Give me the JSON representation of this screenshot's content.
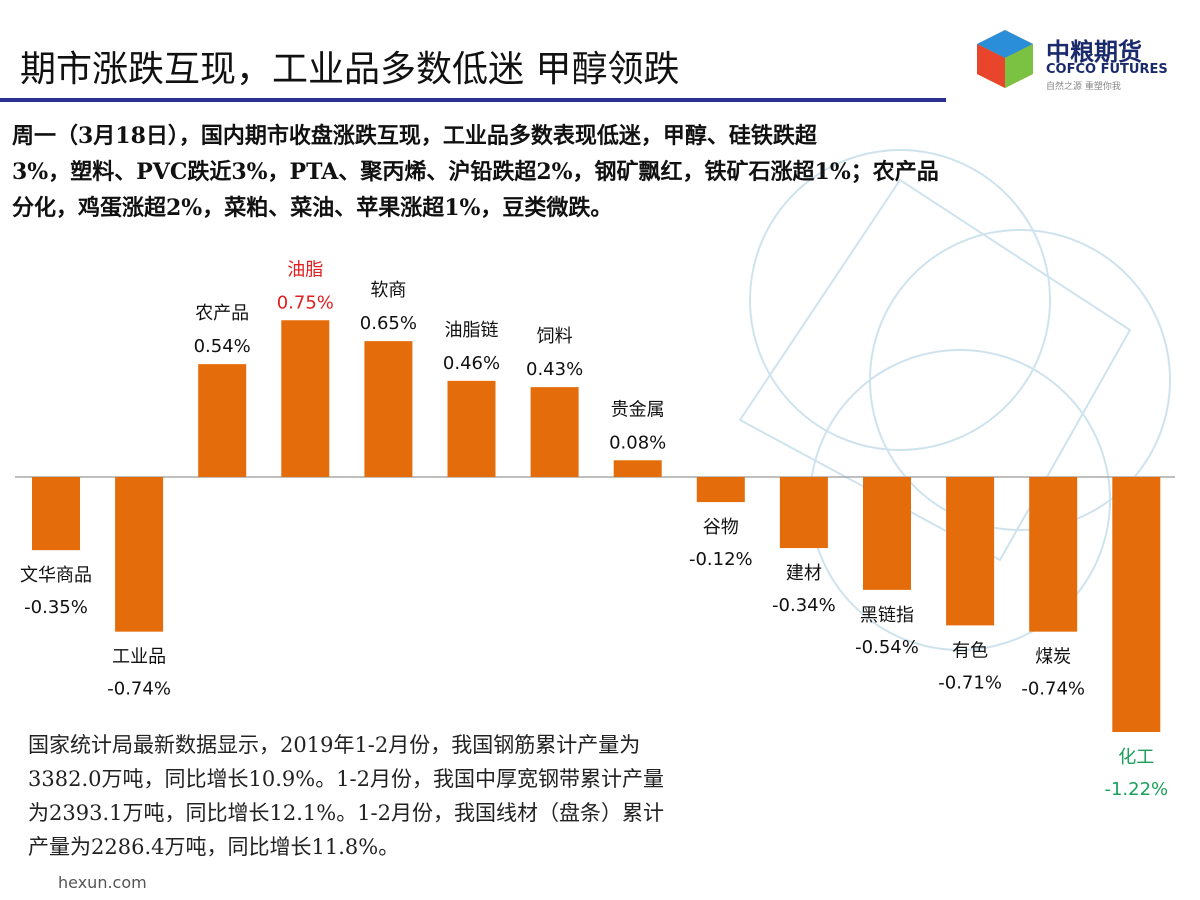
{
  "header": {
    "title": "期市涨跌互现，工业品多数低迷 甲醇领跌",
    "logo_cn": "中粮期货",
    "logo_en": "COFCO FUTURES",
    "logo_slogan": "自然之源 重塑你我"
  },
  "intro": [
    "周一（3月18日），国内期市收盘涨跌互现，工业品多数表现低迷，甲醇、硅铁跌超",
    "3%，塑料、PVC跌近3%，PTA、聚丙烯、沪铅跌超2%，钢矿飘红，铁矿石涨超1%；农产品",
    "分化，鸡蛋涨超2%，菜粕、菜油、苹果涨超1%，豆类微跌。"
  ],
  "chart_data": {
    "type": "bar",
    "categories": [
      "文华商品",
      "工业品",
      "农产品",
      "油脂",
      "软商",
      "油脂链",
      "饲料",
      "贵金属",
      "谷物",
      "建材",
      "黑链指",
      "有色",
      "煤炭",
      "化工"
    ],
    "values": [
      -0.35,
      -0.74,
      0.54,
      0.75,
      0.65,
      0.46,
      0.43,
      0.08,
      -0.12,
      -0.34,
      -0.54,
      -0.71,
      -0.74,
      -1.22
    ],
    "value_labels": [
      "-0.35%",
      "-0.74%",
      "0.54%",
      "0.75%",
      "0.65%",
      "0.46%",
      "0.43%",
      "0.08%",
      "-0.12%",
      "-0.34%",
      "-0.54%",
      "-0.71%",
      "-0.74%",
      "-1.22%"
    ],
    "color": "#e46c0a",
    "label_colors": [
      "#111111",
      "#111111",
      "#111111",
      "#e02020",
      "#111111",
      "#111111",
      "#111111",
      "#111111",
      "#111111",
      "#111111",
      "#111111",
      "#111111",
      "#111111",
      "#1aa05a"
    ]
  },
  "note": [
    "国家统计局最新数据显示，2019年1-2月份，我国钢筋累计产量为",
    "3382.0万吨，同比增长10.9%。1-2月份，我国中厚宽钢带累计产量",
    "为2393.1万吨，同比增长12.1%。1-2月份，我国线材（盘条）累计",
    "产量为2286.4万吨，同比增长11.8%。"
  ],
  "footer": "hexun.com"
}
